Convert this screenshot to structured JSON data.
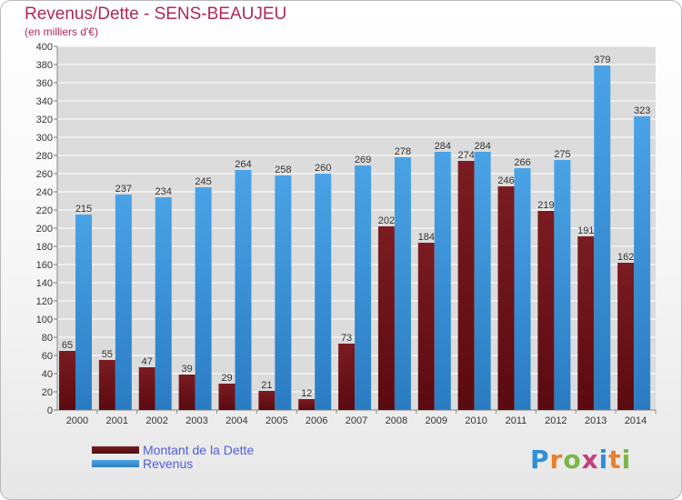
{
  "header": {
    "title": "Revenus/Dette - SENS-BEAUJEU",
    "subtitle": "(en milliers d'€)"
  },
  "legend": {
    "dette": "Montant de la Dette",
    "revenus": "Revenus"
  },
  "logo": {
    "letters": [
      "P",
      "r",
      "o",
      "x",
      "i",
      "t",
      "i"
    ],
    "colors": [
      "#2f8fd8",
      "#e8802c",
      "#7ab648",
      "#c2407a",
      "#2f8fd8",
      "#e8802c",
      "#7ab648"
    ]
  },
  "colors": {
    "dette": "#7a1c22",
    "revenus": "#4aa3e6",
    "grid": "#ffffff",
    "text": "#333333"
  },
  "chart_data": {
    "type": "bar",
    "title": "Revenus/Dette - SENS-BEAUJEU",
    "subtitle": "(en milliers d'€)",
    "categories": [
      "2000",
      "2001",
      "2002",
      "2003",
      "2004",
      "2005",
      "2006",
      "2007",
      "2008",
      "2009",
      "2010",
      "2011",
      "2012",
      "2013",
      "2014"
    ],
    "series": [
      {
        "name": "Montant de la Dette",
        "values": [
          65,
          55,
          47,
          39,
          29,
          21,
          12,
          73,
          202,
          184,
          274,
          246,
          219,
          191,
          162
        ]
      },
      {
        "name": "Revenus",
        "values": [
          215,
          237,
          234,
          245,
          264,
          258,
          260,
          269,
          278,
          284,
          284,
          266,
          275,
          379,
          323
        ]
      }
    ],
    "ylim": [
      0,
      400
    ],
    "ytick_step": 20,
    "grid": true,
    "legend_position": "bottom-left"
  }
}
